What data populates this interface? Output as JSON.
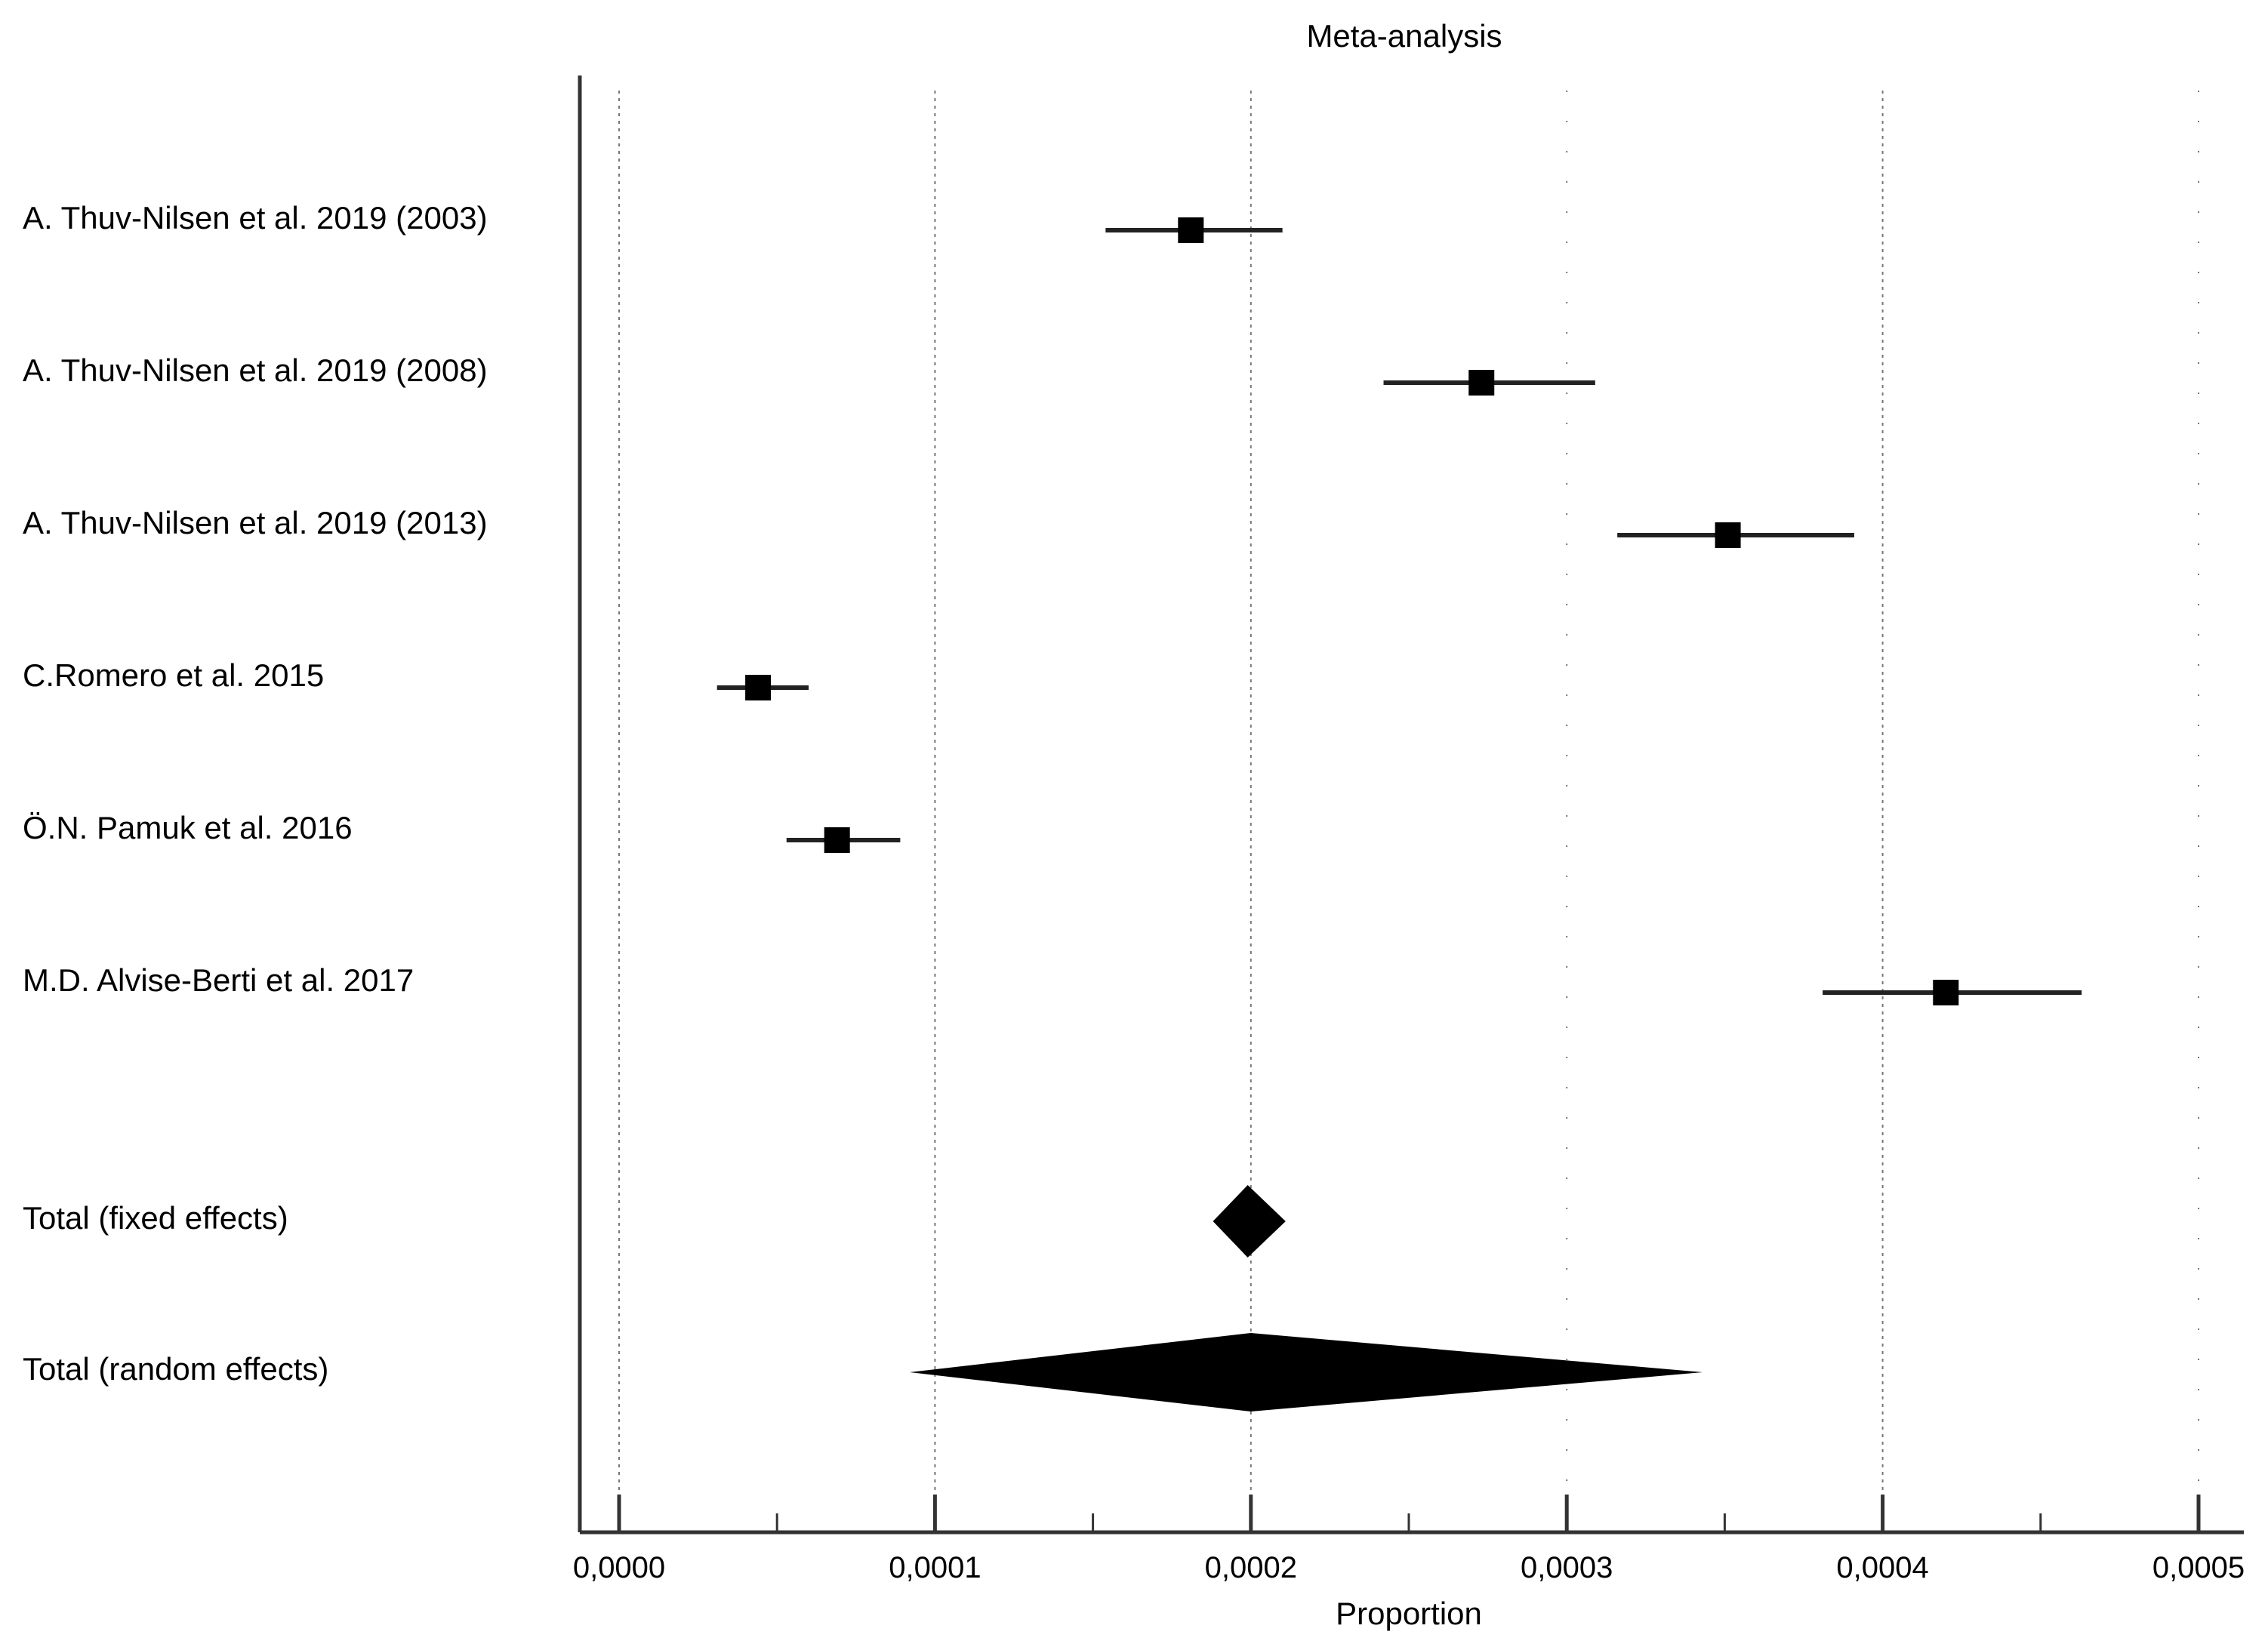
{
  "chart_data": {
    "type": "forest",
    "title": "Meta-analysis",
    "xlabel": "Proportion",
    "ylabel": "",
    "xlim": [
      0,
      0.0005
    ],
    "grid": true,
    "x_ticks": [
      {
        "value": 0,
        "label": "0,0000"
      },
      {
        "value": 0.0001,
        "label": "0,0001"
      },
      {
        "value": 0.0002,
        "label": "0,0002"
      },
      {
        "value": 0.0003,
        "label": "0,0003"
      },
      {
        "value": 0.0004,
        "label": "0,0004"
      },
      {
        "value": 0.0005,
        "label": "0,0005"
      }
    ],
    "studies": [
      {
        "label": "A. Thuv-Nilsen et al. 2019 (2003)",
        "estimate": 0.000181,
        "lower": 0.000154,
        "upper": 0.00021
      },
      {
        "label": "A. Thuv-Nilsen et al. 2019 (2008)",
        "estimate": 0.000273,
        "lower": 0.000242,
        "upper": 0.000309
      },
      {
        "label": "A. Thuv-Nilsen et al. 2019 (2013)",
        "estimate": 0.000351,
        "lower": 0.000316,
        "upper": 0.000391
      },
      {
        "label": "C.Romero et al. 2015",
        "estimate": 4.4e-05,
        "lower": 3.1e-05,
        "upper": 6e-05
      },
      {
        "label": "Ö.N. Pamuk et al. 2016",
        "estimate": 6.9e-05,
        "lower": 5.3e-05,
        "upper": 8.9e-05
      },
      {
        "label": "M.D. Alvise-Berti et al. 2017",
        "estimate": 0.00042,
        "lower": 0.000381,
        "upper": 0.000463
      }
    ],
    "pooled": [
      {
        "label": "Total (fixed effects)",
        "estimate": 0.000199,
        "lower": 0.000188,
        "upper": 0.000211
      },
      {
        "label": "Total (random effects)",
        "estimate": 0.0002,
        "lower": 9.2e-05,
        "upper": 0.000343
      }
    ]
  }
}
